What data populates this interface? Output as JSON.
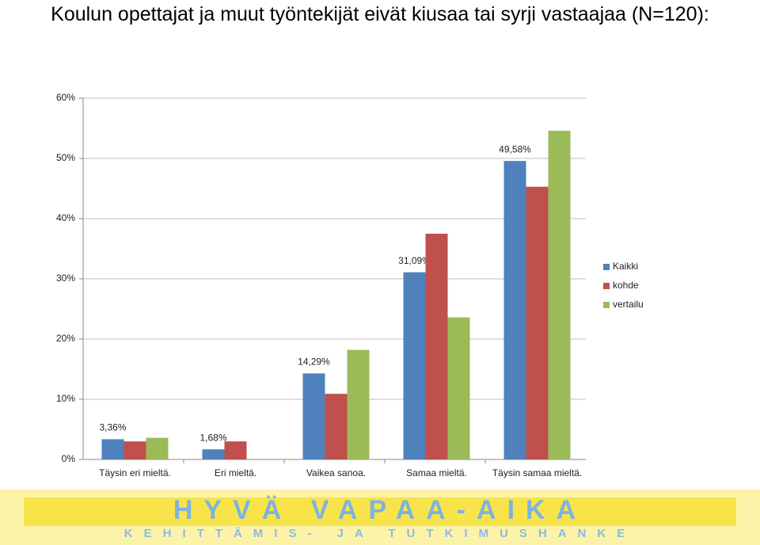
{
  "chart_data": {
    "type": "bar",
    "title": "Koulun opettajat ja muut työntekijät eivät kiusaa tai syrji vastaajaa (N=120):",
    "categories": [
      "Täysin eri mieltä.",
      "Eri mieltä.",
      "Vaikea sanoa.",
      "Samaa mieltä.",
      "Täysin samaa mieltä."
    ],
    "series": [
      {
        "name": "Kaikki",
        "color": "#4f81bd",
        "values": [
          3.36,
          1.68,
          14.29,
          31.09,
          49.58
        ],
        "value_labels": [
          "3,36%",
          "1,68%",
          "14,29%",
          "31,09%",
          "49,58%"
        ]
      },
      {
        "name": "kohde",
        "color": "#c0504d",
        "values": [
          3.0,
          3.0,
          10.9,
          37.5,
          45.3
        ]
      },
      {
        "name": "vertailu",
        "color": "#9bbb59",
        "values": [
          3.6,
          null,
          18.2,
          23.6,
          54.6
        ]
      }
    ],
    "ylim": [
      0,
      60
    ],
    "yticks": [
      {
        "value": 0,
        "label": "0%"
      },
      {
        "value": 10,
        "label": "10%"
      },
      {
        "value": 20,
        "label": "20%"
      },
      {
        "value": 30,
        "label": "30%"
      },
      {
        "value": 40,
        "label": "40%"
      },
      {
        "value": 50,
        "label": "50%"
      },
      {
        "value": 60,
        "label": "60%"
      }
    ],
    "grid": true,
    "legend": "right"
  },
  "footer": {
    "logo": "HYVÄ VAPAA-AIKA",
    "subtitle": "KEHITTÄMIS- JA TUTKIMUSHANKE"
  }
}
